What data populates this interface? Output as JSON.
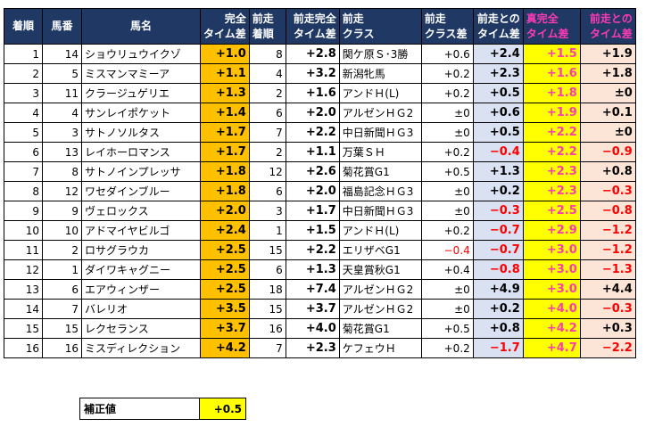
{
  "headers": {
    "rank": "着順",
    "horse_no": "馬番",
    "name": "馬名",
    "full_time_diff": [
      "完全",
      "タイム差"
    ],
    "prev_rank": [
      "前走",
      "着順"
    ],
    "prev_full_diff": [
      "前走完全",
      "タイム差"
    ],
    "prev_class": [
      "前走",
      "クラス"
    ],
    "class_diff": [
      "前走",
      "クラス差"
    ],
    "diff_vs_prev": [
      "前走との",
      "タイム差"
    ],
    "true_full_diff": [
      "真完全",
      "タイム差"
    ],
    "prev_diff2": [
      "前走との",
      "タイム差"
    ]
  },
  "rows": [
    {
      "rank": "1",
      "no": "14",
      "name": "ショウリュウイクゾ",
      "full": "+1.0",
      "prank": "8",
      "pfull": "+2.8",
      "pclass": "関ケ原Ｓ･3勝",
      "cdiff": "+0.6",
      "d1": "+2.4",
      "true": "+1.5",
      "d2": "+1.9"
    },
    {
      "rank": "2",
      "no": "5",
      "name": "ミスマンマミーア",
      "full": "+1.1",
      "prank": "4",
      "pfull": "+3.2",
      "pclass": "新潟牝馬",
      "cdiff": "+0.2",
      "d1": "+2.3",
      "true": "+1.6",
      "d2": "+1.8"
    },
    {
      "rank": "3",
      "no": "11",
      "name": "クラージュゲリエ",
      "full": "+1.3",
      "prank": "2",
      "pfull": "+1.6",
      "pclass": "アンドＨ(L)",
      "cdiff": "+0.2",
      "d1": "+0.5",
      "true": "+1.8",
      "d2": "±0"
    },
    {
      "rank": "4",
      "no": "4",
      "name": "サンレイポケット",
      "full": "+1.4",
      "prank": "6",
      "pfull": "+2.0",
      "pclass": "アルゼンＨＧ2",
      "cdiff": "±0",
      "d1": "+0.6",
      "true": "+1.9",
      "d2": "+0.1"
    },
    {
      "rank": "5",
      "no": "3",
      "name": "サトノソルタス",
      "full": "+1.7",
      "prank": "7",
      "pfull": "+2.2",
      "pclass": "中日新聞ＨＧ3",
      "cdiff": "±0",
      "d1": "+0.5",
      "true": "+2.2",
      "d2": "±0"
    },
    {
      "rank": "6",
      "no": "13",
      "name": "レイホーロマンス",
      "full": "+1.7",
      "prank": "2",
      "pfull": "+1.1",
      "pclass": "万葉ＳＨ",
      "cdiff": "+0.2",
      "d1": "−0.4",
      "true": "+2.2",
      "d2": "−0.9"
    },
    {
      "rank": "7",
      "no": "8",
      "name": "サトノインプレッサ",
      "full": "+1.8",
      "prank": "12",
      "pfull": "+2.6",
      "pclass": "菊花賞G1",
      "cdiff": "+0.5",
      "d1": "+1.3",
      "true": "+2.3",
      "d2": "+0.8"
    },
    {
      "rank": "8",
      "no": "12",
      "name": "ワセダインブルー",
      "full": "+1.8",
      "prank": "6",
      "pfull": "+2.0",
      "pclass": "福島記念ＨＧ3",
      "cdiff": "±0",
      "d1": "+0.2",
      "true": "+2.3",
      "d2": "−0.3"
    },
    {
      "rank": "9",
      "no": "9",
      "name": "ヴェロックス",
      "full": "+2.0",
      "prank": "3",
      "pfull": "+1.7",
      "pclass": "中日新聞ＨＧ3",
      "cdiff": "±0",
      "d1": "−0.3",
      "true": "+2.5",
      "d2": "−0.8"
    },
    {
      "rank": "10",
      "no": "10",
      "name": "アドマイヤビルゴ",
      "full": "+2.4",
      "prank": "1",
      "pfull": "+1.5",
      "pclass": "アンドＨ(L)",
      "cdiff": "+0.2",
      "d1": "−0.7",
      "true": "+2.9",
      "d2": "−1.2"
    },
    {
      "rank": "11",
      "no": "2",
      "name": "ロサグラウカ",
      "full": "+2.5",
      "prank": "15",
      "pfull": "+2.2",
      "pclass": "エリザベG1",
      "cdiff": "−0.4",
      "d1": "−0.7",
      "true": "+3.0",
      "d2": "−1.2"
    },
    {
      "rank": "12",
      "no": "1",
      "name": "ダイワキャグニー",
      "full": "+2.5",
      "prank": "6",
      "pfull": "+1.3",
      "pclass": "天皇賞秋G1",
      "cdiff": "+0.4",
      "d1": "−0.8",
      "true": "+3.0",
      "d2": "−1.3"
    },
    {
      "rank": "13",
      "no": "6",
      "name": "エアウィンザー",
      "full": "+2.5",
      "prank": "18",
      "pfull": "+7.4",
      "pclass": "アルゼンＨＧ2",
      "cdiff": "±0",
      "d1": "+4.9",
      "true": "+3.0",
      "d2": "+4.4"
    },
    {
      "rank": "14",
      "no": "7",
      "name": "バレリオ",
      "full": "+3.5",
      "prank": "15",
      "pfull": "+3.7",
      "pclass": "アルゼンＨＧ2",
      "cdiff": "±0",
      "d1": "+0.2",
      "true": "+4.0",
      "d2": "−0.3"
    },
    {
      "rank": "15",
      "no": "15",
      "name": "レクセランス",
      "full": "+3.7",
      "prank": "16",
      "pfull": "+4.0",
      "pclass": "菊花賞G1",
      "cdiff": "+0.5",
      "d1": "+0.8",
      "true": "+4.2",
      "d2": "+0.3"
    },
    {
      "rank": "16",
      "no": "16",
      "name": "ミスディレクション",
      "full": "+4.2",
      "prank": "7",
      "pfull": "+2.3",
      "pclass": "ケフェウＨ",
      "cdiff": "+0.2",
      "d1": "−1.7",
      "true": "+4.7",
      "d2": "−2.2"
    }
  ],
  "correction": {
    "label": "補正値",
    "value": "+0.5"
  }
}
